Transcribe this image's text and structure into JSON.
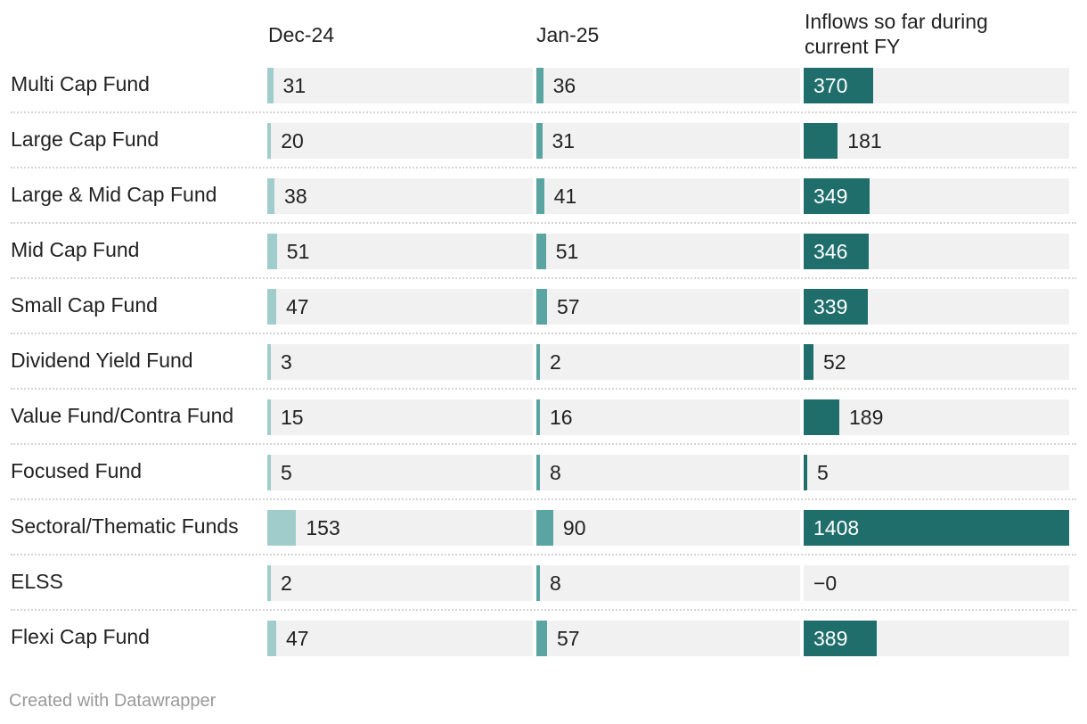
{
  "colors": {
    "dec": "#a0cdcb",
    "jan": "#5aa5a1",
    "fy": "#1f6e6b",
    "track": "#f1f1f1",
    "label_on_bar": "#ffffff",
    "label_off_bar": "#222222"
  },
  "chart_data": {
    "type": "table",
    "columns": [
      "Dec-24",
      "Jan-25",
      "Inflows so far during current FY"
    ],
    "column_keys": [
      "dec",
      "jan",
      "fy"
    ],
    "rows": [
      {
        "label": "Multi Cap Fund",
        "dec": 31,
        "jan": 36,
        "fy": 370,
        "fy_text": "370"
      },
      {
        "label": "Large Cap Fund",
        "dec": 20,
        "jan": 31,
        "fy": 181,
        "fy_text": "181"
      },
      {
        "label": "Large & Mid Cap Fund",
        "dec": 38,
        "jan": 41,
        "fy": 349,
        "fy_text": "349"
      },
      {
        "label": "Mid Cap Fund",
        "dec": 51,
        "jan": 51,
        "fy": 346,
        "fy_text": "346"
      },
      {
        "label": "Small Cap Fund",
        "dec": 47,
        "jan": 57,
        "fy": 339,
        "fy_text": "339"
      },
      {
        "label": "Dividend Yield Fund",
        "dec": 3,
        "jan": 2,
        "fy": 52,
        "fy_text": "52"
      },
      {
        "label": "Value Fund/Contra Fund",
        "dec": 15,
        "jan": 16,
        "fy": 189,
        "fy_text": "189"
      },
      {
        "label": "Focused Fund",
        "dec": 5,
        "jan": 8,
        "fy": 5,
        "fy_text": "5"
      },
      {
        "label": "Sectoral/Thematic Funds",
        "dec": 153,
        "jan": 90,
        "fy": 1408,
        "fy_text": "1408"
      },
      {
        "label": "ELSS",
        "dec": 2,
        "jan": 8,
        "fy": 0,
        "fy_text": "−0"
      },
      {
        "label": "Flexi Cap Fund",
        "dec": 47,
        "jan": 57,
        "fy": 389,
        "fy_text": "389"
      }
    ],
    "scale_max": {
      "dec": 1408,
      "jan": 1408,
      "fy": 1408
    }
  },
  "footer": "Created with Datawrapper"
}
